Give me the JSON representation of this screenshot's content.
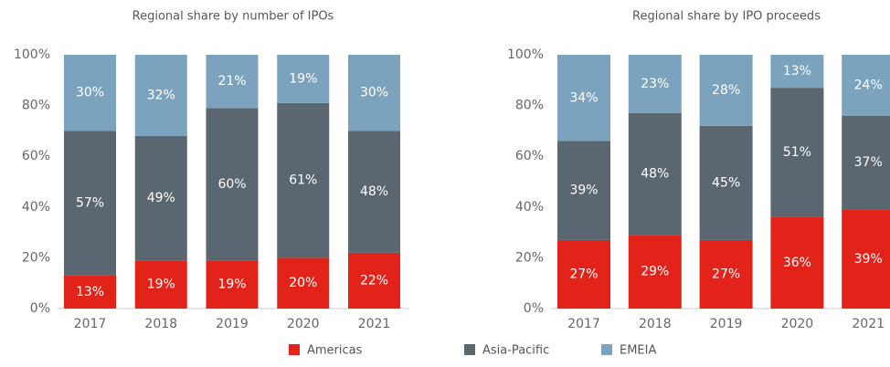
{
  "chart_data": [
    {
      "type": "bar",
      "stacked": true,
      "title": "Regional share by number of IPOs",
      "categories": [
        "2017",
        "2018",
        "2019",
        "2020",
        "2021"
      ],
      "series": [
        {
          "name": "Americas",
          "color": "#e2231a",
          "values": [
            13,
            19,
            19,
            20,
            22
          ],
          "value_labels": [
            "13%",
            "19%",
            "19%",
            "20%",
            "22%"
          ]
        },
        {
          "name": "Asia-Pacific",
          "color": "#5a6670",
          "values": [
            57,
            49,
            60,
            61,
            48
          ],
          "value_labels": [
            "57%",
            "49%",
            "60%",
            "61%",
            "48%"
          ]
        },
        {
          "name": "EMEIA",
          "color": "#7ba3bd",
          "values": [
            30,
            32,
            21,
            19,
            30
          ],
          "value_labels": [
            "30%",
            "32%",
            "21%",
            "19%",
            "30%"
          ]
        }
      ],
      "ylim": [
        0,
        100
      ],
      "yticks": [
        {
          "value": 0,
          "label": "0%"
        },
        {
          "value": 20,
          "label": "20%"
        },
        {
          "value": 40,
          "label": "40%"
        },
        {
          "value": 60,
          "label": "60%"
        },
        {
          "value": 80,
          "label": "80%"
        },
        {
          "value": 100,
          "label": "100%"
        }
      ]
    },
    {
      "type": "bar",
      "stacked": true,
      "title": "Regional share by IPO proceeds",
      "categories": [
        "2017",
        "2018",
        "2019",
        "2020",
        "2021"
      ],
      "series": [
        {
          "name": "Americas",
          "color": "#e2231a",
          "values": [
            27,
            29,
            27,
            36,
            39
          ],
          "value_labels": [
            "27%",
            "29%",
            "27%",
            "36%",
            "39%"
          ]
        },
        {
          "name": "Asia-Pacific",
          "color": "#5a6670",
          "values": [
            39,
            48,
            45,
            51,
            37
          ],
          "value_labels": [
            "39%",
            "48%",
            "45%",
            "51%",
            "37%"
          ]
        },
        {
          "name": "EMEIA",
          "color": "#7ba3bd",
          "values": [
            34,
            23,
            28,
            13,
            24
          ],
          "value_labels": [
            "34%",
            "23%",
            "28%",
            "13%",
            "24%"
          ]
        }
      ],
      "ylim": [
        0,
        100
      ],
      "yticks": [
        {
          "value": 0,
          "label": "0%"
        },
        {
          "value": 20,
          "label": "20%"
        },
        {
          "value": 40,
          "label": "40%"
        },
        {
          "value": 60,
          "label": "60%"
        },
        {
          "value": 80,
          "label": "80%"
        },
        {
          "value": 100,
          "label": "100%"
        }
      ]
    }
  ]
}
